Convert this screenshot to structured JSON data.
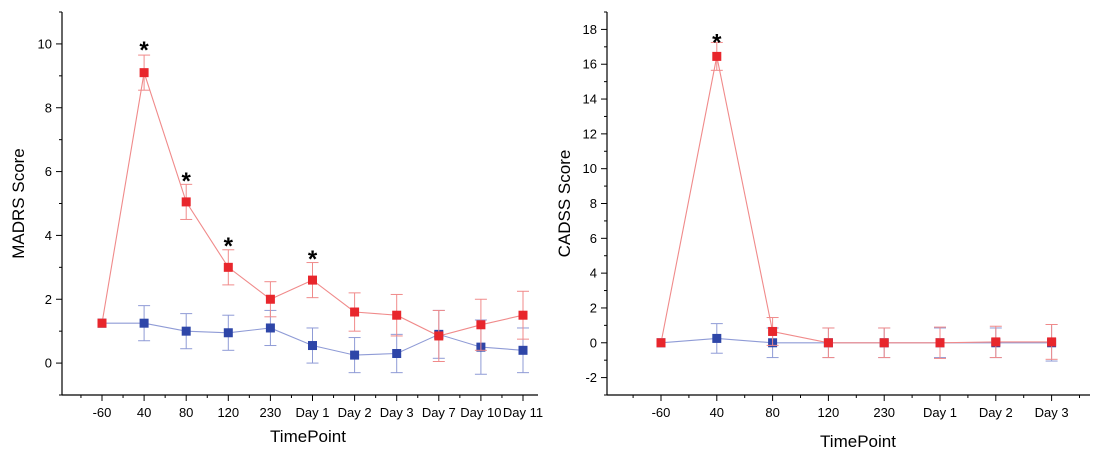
{
  "chart_data": [
    {
      "type": "line",
      "xlabel": "TimePoint",
      "ylabel": "MADRS Score",
      "categories": [
        "-60",
        "40",
        "80",
        "120",
        "230",
        "Day 1",
        "Day 2",
        "Day 3",
        "Day 7",
        "Day 10",
        "Day 11"
      ],
      "ylim": [
        -1,
        11
      ],
      "yticks": [
        0,
        2,
        4,
        6,
        8,
        10
      ],
      "series": [
        {
          "color": "#e8262c",
          "values": [
            1.25,
            9.1,
            5.05,
            3.0,
            2.0,
            2.6,
            1.6,
            1.5,
            0.85,
            1.2,
            1.5
          ],
          "errors": [
            0,
            0.55,
            0.55,
            0.55,
            0.55,
            0.55,
            0.6,
            0.65,
            0.8,
            0.8,
            0.75
          ]
        },
        {
          "color": "#2e46a8",
          "values": [
            1.25,
            1.25,
            1.0,
            0.95,
            1.1,
            0.55,
            0.25,
            0.3,
            0.9,
            0.5,
            0.4
          ],
          "errors": [
            0,
            0.55,
            0.55,
            0.55,
            0.55,
            0.55,
            0.55,
            0.6,
            0.75,
            0.85,
            0.7
          ]
        }
      ],
      "annotations": [
        {
          "category": "40",
          "y": 10.0,
          "text": "*"
        },
        {
          "category": "80",
          "y": 5.9,
          "text": "*"
        },
        {
          "category": "120",
          "y": 3.85,
          "text": "*"
        },
        {
          "category": "Day 1",
          "y": 3.45,
          "text": "*"
        }
      ]
    },
    {
      "type": "line",
      "xlabel": "TimePoint",
      "ylabel": "CADSS Score",
      "categories": [
        "-60",
        "40",
        "80",
        "120",
        "230",
        "Day 1",
        "Day 2",
        "Day 3"
      ],
      "ylim": [
        -3,
        19
      ],
      "yticks": [
        -2,
        0,
        2,
        4,
        6,
        8,
        10,
        12,
        14,
        16,
        18
      ],
      "series": [
        {
          "color": "#e8262c",
          "values": [
            0,
            16.45,
            0.65,
            0,
            0,
            0,
            0.05,
            0.05
          ],
          "errors": [
            0,
            0.8,
            0.8,
            0.85,
            0.85,
            0.9,
            0.9,
            1.0
          ]
        },
        {
          "color": "#2e46a8",
          "values": [
            0,
            0.25,
            0,
            0,
            0,
            0,
            0,
            0
          ],
          "errors": [
            0,
            0.85,
            0.85,
            0.85,
            0.85,
            0.85,
            0.85,
            1.05
          ]
        }
      ],
      "annotations": [
        {
          "category": "40",
          "y": 17.6,
          "text": "*"
        }
      ]
    }
  ]
}
